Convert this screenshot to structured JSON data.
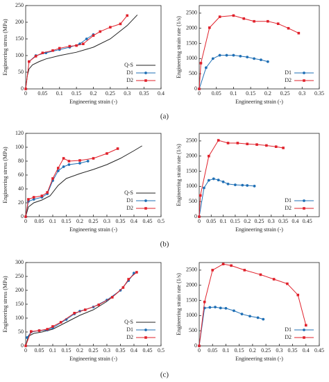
{
  "panel_labels": [
    "(a)",
    "(b)",
    "(c)"
  ],
  "chart_data": [
    {
      "type": "line",
      "x_label": "Engineering strain (-)",
      "y_label": "Engineering stress (MPa)",
      "legend": "lower right",
      "xlim": [
        0,
        0.4
      ],
      "xticks": [
        0,
        0.05,
        0.1,
        0.15,
        0.2,
        0.25,
        0.3,
        0.35,
        0.4
      ],
      "ylim": [
        0,
        250
      ],
      "yticks": [
        0,
        50,
        100,
        150,
        200,
        250
      ],
      "series": [
        {
          "name": "Q-S",
          "color": "#222222",
          "marker": "none",
          "x": [
            0,
            0.005,
            0.01,
            0.02,
            0.04,
            0.06,
            0.1,
            0.15,
            0.2,
            0.25,
            0.3,
            0.33
          ],
          "values": [
            0,
            40,
            60,
            72,
            82,
            90,
            100,
            110,
            125,
            150,
            190,
            222
          ]
        },
        {
          "name": "D1",
          "color": "#1f6fb5",
          "marker": "circle",
          "x": [
            0.01,
            0.03,
            0.06,
            0.1,
            0.13,
            0.16,
            0.18,
            0.2
          ],
          "values": [
            82,
            100,
            108,
            118,
            125,
            135,
            150,
            163
          ]
        },
        {
          "name": "D2",
          "color": "#e0202a",
          "marker": "square",
          "x": [
            0,
            0.01,
            0.03,
            0.05,
            0.08,
            0.1,
            0.13,
            0.15,
            0.17,
            0.2,
            0.22,
            0.25,
            0.28,
            0.3
          ],
          "values": [
            0,
            82,
            98,
            108,
            115,
            122,
            128,
            130,
            135,
            160,
            172,
            185,
            195,
            220
          ]
        }
      ]
    },
    {
      "type": "line",
      "x_label": "Engineering strain (-)",
      "y_label": "Engineering strain rate (1/s)",
      "legend": "lower right",
      "xlim": [
        0,
        0.35
      ],
      "xticks": [
        0,
        0.05,
        0.1,
        0.15,
        0.2,
        0.25,
        0.3,
        0.35
      ],
      "ylim": [
        0,
        2750
      ],
      "yticks": [
        0,
        500,
        1000,
        1500,
        2000,
        2500
      ],
      "series": [
        {
          "name": "D1",
          "color": "#1f6fb5",
          "marker": "circle",
          "x": [
            0,
            0.02,
            0.04,
            0.06,
            0.08,
            0.1,
            0.12,
            0.14,
            0.16,
            0.18,
            0.2
          ],
          "values": [
            0,
            700,
            1000,
            1110,
            1110,
            1110,
            1080,
            1050,
            1000,
            960,
            900
          ]
        },
        {
          "name": "D2",
          "color": "#e0202a",
          "marker": "square",
          "x": [
            0,
            0.005,
            0.03,
            0.06,
            0.1,
            0.13,
            0.16,
            0.2,
            0.23,
            0.26,
            0.29
          ],
          "values": [
            0,
            850,
            2020,
            2380,
            2420,
            2320,
            2230,
            2230,
            2150,
            2000,
            1840
          ]
        }
      ]
    },
    {
      "type": "line",
      "x_label": "Engineering strain (-)",
      "y_label": "Engineering stress (MPa)",
      "legend": "lower right",
      "xlim": [
        0,
        0.5
      ],
      "xticks": [
        0,
        0.05,
        0.1,
        0.15,
        0.2,
        0.25,
        0.3,
        0.35,
        0.4,
        0.45,
        0.5
      ],
      "ylim": [
        0,
        120
      ],
      "yticks": [
        0,
        20,
        40,
        60,
        80,
        100,
        120
      ],
      "series": [
        {
          "name": "Q-S",
          "color": "#222222",
          "marker": "none",
          "x": [
            0,
            0.01,
            0.03,
            0.06,
            0.09,
            0.12,
            0.15,
            0.2,
            0.25,
            0.3,
            0.35,
            0.4,
            0.43
          ],
          "values": [
            0,
            14,
            20,
            24,
            30,
            45,
            55,
            62,
            68,
            75,
            84,
            95,
            102
          ]
        },
        {
          "name": "D1",
          "color": "#1f6fb5",
          "marker": "circle",
          "x": [
            0,
            0.01,
            0.03,
            0.06,
            0.08,
            0.1,
            0.12,
            0.14,
            0.16,
            0.2,
            0.23
          ],
          "values": [
            0,
            22,
            25,
            28,
            33,
            52,
            66,
            72,
            75,
            77,
            80
          ]
        },
        {
          "name": "D2",
          "color": "#e0202a",
          "marker": "square",
          "x": [
            0,
            0.01,
            0.03,
            0.06,
            0.08,
            0.1,
            0.12,
            0.14,
            0.16,
            0.2,
            0.25,
            0.3,
            0.34
          ],
          "values": [
            0,
            25,
            28,
            30,
            35,
            55,
            70,
            84,
            80,
            81,
            84,
            91,
            98
          ]
        }
      ]
    },
    {
      "type": "line",
      "x_label": "Engineering strain (-)",
      "y_label": "Engineering strain rate (1/s)",
      "legend": "lower right",
      "xlim": [
        0,
        0.5
      ],
      "xticks": [
        0,
        0.05,
        0.1,
        0.15,
        0.2,
        0.25,
        0.3,
        0.35,
        0.4,
        0.45
      ],
      "ylim": [
        0,
        2750
      ],
      "yticks": [
        0,
        500,
        1000,
        1500,
        2000,
        2500
      ],
      "series": [
        {
          "name": "D1",
          "color": "#1f6fb5",
          "marker": "circle",
          "x": [
            0,
            0.02,
            0.04,
            0.06,
            0.08,
            0.1,
            0.12,
            0.15,
            0.18,
            0.2,
            0.23
          ],
          "values": [
            0,
            950,
            1200,
            1250,
            1210,
            1150,
            1080,
            1050,
            1040,
            1030,
            1010
          ]
        },
        {
          "name": "D2",
          "color": "#e0202a",
          "marker": "square",
          "x": [
            0,
            0.005,
            0.04,
            0.08,
            0.12,
            0.16,
            0.2,
            0.24,
            0.28,
            0.32,
            0.35
          ],
          "values": [
            0,
            700,
            2000,
            2520,
            2430,
            2430,
            2400,
            2380,
            2350,
            2310,
            2270
          ]
        }
      ]
    },
    {
      "type": "line",
      "x_label": "Engineering strain (-)",
      "y_label": "Engineering stress (MPa)",
      "legend": "lower right",
      "xlim": [
        0,
        0.5
      ],
      "xticks": [
        0,
        0.05,
        0.1,
        0.15,
        0.2,
        0.25,
        0.3,
        0.35,
        0.4,
        0.45,
        0.5
      ],
      "ylim": [
        0,
        300
      ],
      "yticks": [
        0,
        50,
        100,
        150,
        200,
        250,
        300
      ],
      "series": [
        {
          "name": "Q-S",
          "color": "#222222",
          "marker": "none",
          "x": [
            0,
            0.01,
            0.03,
            0.06,
            0.1,
            0.15,
            0.2,
            0.25,
            0.3,
            0.35,
            0.4
          ],
          "values": [
            0,
            35,
            45,
            50,
            60,
            85,
            110,
            130,
            160,
            200,
            260
          ]
        },
        {
          "name": "D1",
          "color": "#1f6fb5",
          "marker": "circle",
          "x": [
            0.005,
            0.02,
            0.05,
            0.08,
            0.1,
            0.15,
            0.18,
            0.2,
            0.25,
            0.3,
            0.35,
            0.38,
            0.4
          ],
          "values": [
            30,
            50,
            55,
            57,
            65,
            95,
            115,
            125,
            140,
            165,
            200,
            235,
            262
          ]
        },
        {
          "name": "D2",
          "color": "#e0202a",
          "marker": "square",
          "x": [
            0,
            0.02,
            0.05,
            0.08,
            0.1,
            0.13,
            0.18,
            0.22,
            0.27,
            0.32,
            0.36,
            0.38,
            0.41
          ],
          "values": [
            0,
            52,
            55,
            60,
            70,
            85,
            118,
            130,
            148,
            175,
            210,
            240,
            265
          ]
        }
      ]
    },
    {
      "type": "line",
      "x_label": "Engineering strain (-)",
      "y_label": "Engineering strain rate (1/s)",
      "legend": "lower right",
      "xlim": [
        0,
        0.45
      ],
      "xticks": [
        0,
        0.05,
        0.1,
        0.15,
        0.2,
        0.25,
        0.3,
        0.35,
        0.4,
        0.45
      ],
      "ylim": [
        0,
        2750
      ],
      "yticks": [
        0,
        500,
        1000,
        1500,
        2000,
        2500
      ],
      "series": [
        {
          "name": "D1",
          "color": "#1f6fb5",
          "marker": "circle",
          "x": [
            0,
            0.02,
            0.04,
            0.06,
            0.08,
            0.1,
            0.13,
            0.16,
            0.19,
            0.22,
            0.24
          ],
          "values": [
            0,
            1250,
            1270,
            1280,
            1250,
            1240,
            1160,
            1050,
            980,
            930,
            880
          ]
        },
        {
          "name": "D2",
          "color": "#e0202a",
          "marker": "square",
          "x": [
            0,
            0.02,
            0.05,
            0.09,
            0.12,
            0.17,
            0.23,
            0.28,
            0.33,
            0.37,
            0.4
          ],
          "values": [
            0,
            1450,
            2500,
            2700,
            2650,
            2500,
            2350,
            2200,
            2050,
            1680,
            680
          ]
        }
      ]
    }
  ]
}
